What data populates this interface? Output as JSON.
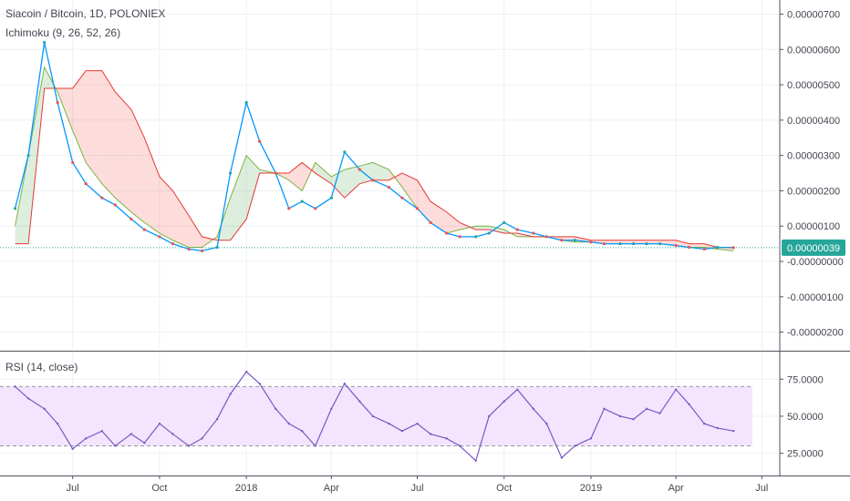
{
  "header": {
    "symbol_title": "Siacoin / Bitcoin, 1D, POLONIEX",
    "ichimoku_label": "Ichimoku (9, 26, 52, 26)"
  },
  "rsi_panel": {
    "label": "RSI (14, close)"
  },
  "price_tag": {
    "value": "0.00000039",
    "color": "#26a69a"
  },
  "colors": {
    "candle_up": "#26a69a",
    "candle_down": "#ef5350",
    "conversion_line": "#0496ff",
    "base_line": "#991515",
    "lagging_span": "#459915",
    "lead_a": "#7cb342",
    "lead_b": "#e53935",
    "rsi_line": "#7e57c2",
    "rsi_band": "#f3e5fd"
  },
  "chart_data": [
    {
      "type": "line",
      "title": "Siacoin / Bitcoin, 1D, POLONIEX",
      "indicator": "Ichimoku (9, 26, 52, 26)",
      "x_ticks": [
        "Jul",
        "Oct",
        "2018",
        "Apr",
        "Jul",
        "Oct",
        "2019",
        "Apr",
        "Jul"
      ],
      "y_ticks": [
        "0.00000700",
        "0.00000600",
        "0.00000500",
        "0.00000400",
        "0.00000300",
        "0.00000200",
        "0.00000100",
        "-0.00000000",
        "-0.00000100",
        "-0.00000200"
      ],
      "ylim": [
        -2.5e-06,
        7.4e-06
      ],
      "last_price": 3.9e-07,
      "x": [
        "2017-05-01",
        "2017-05-15",
        "2017-06-01",
        "2017-06-15",
        "2017-07-01",
        "2017-07-15",
        "2017-08-01",
        "2017-08-15",
        "2017-09-01",
        "2017-09-15",
        "2017-10-01",
        "2017-10-15",
        "2017-11-01",
        "2017-11-15",
        "2017-12-01",
        "2017-12-15",
        "2018-01-01",
        "2018-01-15",
        "2018-02-01",
        "2018-02-15",
        "2018-03-01",
        "2018-03-15",
        "2018-04-01",
        "2018-04-15",
        "2018-05-01",
        "2018-05-15",
        "2018-06-01",
        "2018-06-15",
        "2018-07-01",
        "2018-07-15",
        "2018-08-01",
        "2018-08-15",
        "2018-09-01",
        "2018-09-15",
        "2018-10-01",
        "2018-10-15",
        "2018-11-01",
        "2018-11-15",
        "2018-12-01",
        "2018-12-15",
        "2019-01-01",
        "2019-01-15",
        "2019-02-01",
        "2019-02-15",
        "2019-03-01",
        "2019-03-15",
        "2019-04-01",
        "2019-04-15",
        "2019-05-01",
        "2019-05-15",
        "2019-06-01"
      ],
      "series": [
        {
          "role": "price",
          "values": [
            1.5e-06,
            3e-06,
            6.2e-06,
            4.5e-06,
            2.8e-06,
            2.2e-06,
            1.8e-06,
            1.6e-06,
            1.2e-06,
            9e-07,
            7e-07,
            5e-07,
            3.5e-07,
            3e-07,
            4e-07,
            2.5e-06,
            4.5e-06,
            3.4e-06,
            2.5e-06,
            1.5e-06,
            1.7e-06,
            1.5e-06,
            1.8e-06,
            3.1e-06,
            2.6e-06,
            2.3e-06,
            2.1e-06,
            1.8e-06,
            1.5e-06,
            1.1e-06,
            8e-07,
            7e-07,
            7e-07,
            8e-07,
            1.1e-06,
            9e-07,
            8e-07,
            7e-07,
            6e-07,
            6e-07,
            5.5e-07,
            5e-07,
            5e-07,
            5e-07,
            5e-07,
            5e-07,
            4.5e-07,
            4e-07,
            3.5e-07,
            4e-07,
            3.9e-07
          ]
        },
        {
          "role": "leading-span-a",
          "values": [
            1e-06,
            3e-06,
            5.5e-06,
            4.8e-06,
            3.7e-06,
            2.8e-06,
            2.2e-06,
            1.8e-06,
            1.4e-06,
            1.1e-06,
            8e-07,
            6e-07,
            4e-07,
            4e-07,
            7e-07,
            1.8e-06,
            3e-06,
            2.6e-06,
            2.5e-06,
            2.3e-06,
            2e-06,
            2.8e-06,
            2.4e-06,
            2.6e-06,
            2.7e-06,
            2.8e-06,
            2.6e-06,
            2.1e-06,
            1.5e-06,
            1.1e-06,
            8e-07,
            9e-07,
            1e-06,
            1e-06,
            9e-07,
            7e-07,
            7e-07,
            7e-07,
            6e-07,
            5.5e-07,
            5.5e-07,
            5e-07,
            5e-07,
            5e-07,
            5e-07,
            5e-07,
            4.5e-07,
            4e-07,
            4e-07,
            3.5e-07,
            3e-07
          ]
        },
        {
          "role": "leading-span-b",
          "values": [
            5e-07,
            5e-07,
            4.9e-06,
            4.9e-06,
            4.9e-06,
            5.4e-06,
            5.4e-06,
            4.8e-06,
            4.3e-06,
            3.5e-06,
            2.4e-06,
            2e-06,
            1.3e-06,
            7e-07,
            6e-07,
            6e-07,
            1.2e-06,
            2.5e-06,
            2.5e-06,
            2.5e-06,
            2.8e-06,
            2.5e-06,
            2.2e-06,
            1.8e-06,
            2.2e-06,
            2.3e-06,
            2.3e-06,
            2.5e-06,
            2.3e-06,
            1.7e-06,
            1.4e-06,
            1.1e-06,
            9e-07,
            9e-07,
            8e-07,
            8e-07,
            7e-07,
            7e-07,
            7e-07,
            7e-07,
            6e-07,
            6e-07,
            6e-07,
            6e-07,
            6e-07,
            6e-07,
            6e-07,
            5e-07,
            5e-07,
            4e-07,
            4e-07
          ]
        }
      ]
    },
    {
      "type": "line",
      "title": "RSI (14, close)",
      "x_ticks": [
        "Jul",
        "Oct",
        "2018",
        "Apr",
        "Jul",
        "Oct",
        "2019",
        "Apr",
        "Jul"
      ],
      "y_ticks": [
        "75.0000",
        "50.0000",
        "25.0000"
      ],
      "ylim": [
        10,
        93
      ],
      "bands": [
        30,
        70
      ],
      "x": [
        "2017-05-01",
        "2017-05-15",
        "2017-06-01",
        "2017-06-15",
        "2017-07-01",
        "2017-07-15",
        "2017-08-01",
        "2017-08-15",
        "2017-09-01",
        "2017-09-15",
        "2017-10-01",
        "2017-10-15",
        "2017-11-01",
        "2017-11-15",
        "2017-12-01",
        "2017-12-15",
        "2018-01-01",
        "2018-01-15",
        "2018-02-01",
        "2018-02-15",
        "2018-03-01",
        "2018-03-15",
        "2018-04-01",
        "2018-04-15",
        "2018-05-01",
        "2018-05-15",
        "2018-06-01",
        "2018-06-15",
        "2018-07-01",
        "2018-07-15",
        "2018-08-01",
        "2018-08-15",
        "2018-09-01",
        "2018-09-15",
        "2018-10-01",
        "2018-10-15",
        "2018-11-01",
        "2018-11-15",
        "2018-12-01",
        "2018-12-15",
        "2019-01-01",
        "2019-01-15",
        "2019-02-01",
        "2019-02-15",
        "2019-03-01",
        "2019-03-15",
        "2019-04-01",
        "2019-04-15",
        "2019-05-01",
        "2019-05-15",
        "2019-06-01"
      ],
      "values": [
        70,
        62,
        55,
        45,
        28,
        35,
        40,
        30,
        38,
        32,
        45,
        38,
        30,
        35,
        48,
        65,
        80,
        72,
        55,
        45,
        40,
        30,
        55,
        72,
        60,
        50,
        45,
        40,
        45,
        38,
        35,
        30,
        20,
        50,
        60,
        68,
        55,
        45,
        22,
        30,
        35,
        55,
        50,
        48,
        55,
        52,
        68,
        58,
        45,
        42,
        40
      ]
    }
  ]
}
